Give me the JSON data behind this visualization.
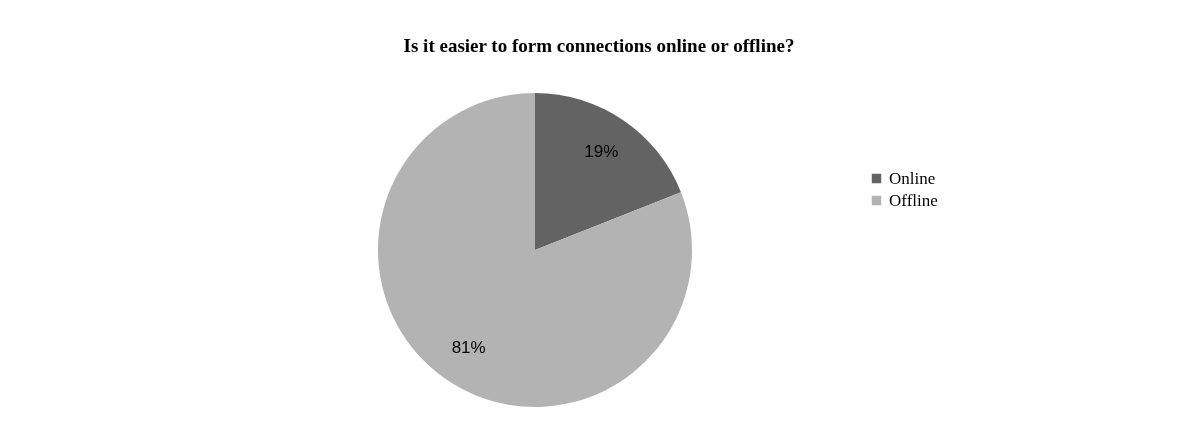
{
  "chart_data": {
    "type": "pie",
    "title": "Is it easier to form connections online or offline?",
    "categories": [
      "Online",
      "Offline"
    ],
    "values": [
      19,
      81
    ],
    "colors": [
      "#636363",
      "#b3b3b3"
    ],
    "value_labels": [
      "19%",
      "81%"
    ],
    "legend": "right"
  }
}
